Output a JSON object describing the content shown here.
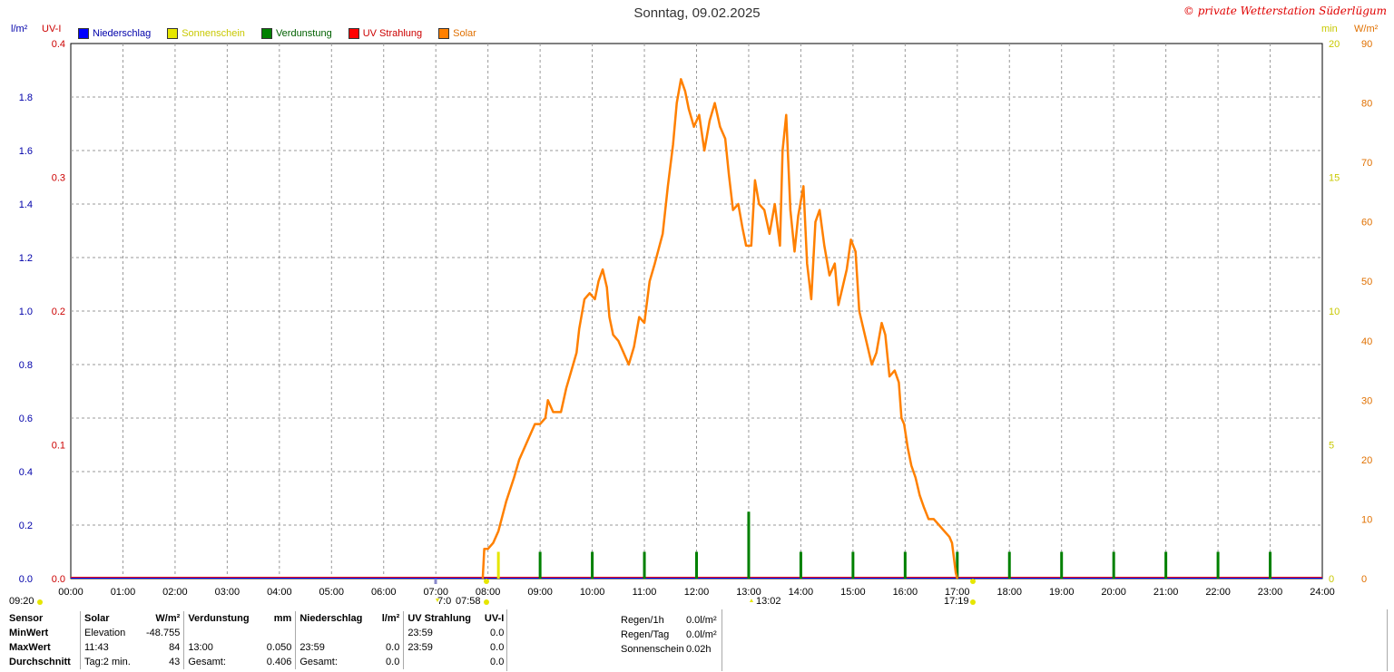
{
  "title": "Sonntag, 09.02.2025",
  "copyright": "© private Wetterstation Süderlügum",
  "legend": [
    {
      "label": "Niederschlag",
      "color": "#0000ff"
    },
    {
      "label": "Sonnenschein",
      "color": "#e6e600"
    },
    {
      "label": "Verdunstung",
      "color": "#008000"
    },
    {
      "label": "UV Strahlung",
      "color": "#ff0000"
    },
    {
      "label": "Solar",
      "color": "#ff8000"
    }
  ],
  "units": {
    "left1": "l/m²",
    "left2": "UV-I",
    "right1": "min",
    "right2": "W/m²"
  },
  "marks": {
    "bottom_left": "09:20",
    "sunrise_a": "7:0",
    "sunrise_b": "07:58",
    "max_uv": "13:02",
    "sunset": "17:19"
  },
  "stats": {
    "headers": [
      "Sensor",
      "Solar",
      "W/m²",
      "Verdunstung",
      "mm",
      "Niederschlag",
      "l/m²",
      "UV Strahlung",
      "UV-I"
    ],
    "rows": [
      {
        "label": "MinWert",
        "c1": "Elevation",
        "c2": "-48.755",
        "c3": "",
        "c4": "",
        "c5": "",
        "c6": "",
        "c7": "23:59",
        "c8": "0.0"
      },
      {
        "label": "MaxWert",
        "c1": "11:43",
        "c2": "84",
        "c3": "13:00",
        "c4": "0.050",
        "c5": "23:59",
        "c6": "0.0",
        "c7": "23:59",
        "c8": "0.0"
      },
      {
        "label": "Durchschnitt",
        "c1": "Tag:2 min.",
        "c2": "43",
        "c3": "Gesamt:",
        "c4": "0.406",
        "c5": "Gesamt:",
        "c6": "0.0",
        "c7": "",
        "c8": "0.0"
      }
    ]
  },
  "extra": [
    {
      "k": "Regen/1h",
      "v": "0.0l/m²"
    },
    {
      "k": "Regen/Tag",
      "v": "0.0l/m²"
    },
    {
      "k": "Sonnenschein",
      "v": "0.02h"
    }
  ],
  "chart_data": {
    "type": "line",
    "x_unit": "hour of day",
    "xlim": [
      0,
      24
    ],
    "x_ticks": [
      "00:00",
      "01:00",
      "02:00",
      "03:00",
      "04:00",
      "05:00",
      "06:00",
      "07:00",
      "08:00",
      "09:00",
      "10:00",
      "11:00",
      "12:00",
      "13:00",
      "14:00",
      "15:00",
      "16:00",
      "17:00",
      "18:00",
      "19:00",
      "20:00",
      "21:00",
      "22:00",
      "23:00",
      "24:00"
    ],
    "axes": {
      "niederschlag": {
        "range": [
          0,
          2.0
        ],
        "ticks": [
          "0.0",
          "0.2",
          "0.4",
          "0.6",
          "0.8",
          "1.0",
          "1.2",
          "1.4",
          "1.6",
          "1.8"
        ]
      },
      "uv": {
        "range": [
          0,
          0.4
        ],
        "ticks": [
          "0.0",
          "0.1",
          "0.2",
          "0.3",
          "0.4"
        ]
      },
      "sonnenschein": {
        "range": [
          0,
          20
        ],
        "ticks": [
          "0",
          "5",
          "10",
          "15",
          "20"
        ]
      },
      "solar": {
        "range": [
          0,
          90
        ],
        "ticks": [
          "0",
          "10",
          "20",
          "30",
          "40",
          "50",
          "60",
          "70",
          "80",
          "90"
        ]
      }
    },
    "series": [
      {
        "name": "Solar",
        "color": "#ff8000",
        "points": [
          [
            7.9,
            0
          ],
          [
            7.93,
            5
          ],
          [
            8.0,
            5
          ],
          [
            8.1,
            6
          ],
          [
            8.2,
            8
          ],
          [
            8.35,
            13
          ],
          [
            8.5,
            17
          ],
          [
            8.6,
            20
          ],
          [
            8.7,
            22
          ],
          [
            8.8,
            24
          ],
          [
            8.9,
            26
          ],
          [
            9.0,
            26
          ],
          [
            9.1,
            27
          ],
          [
            9.15,
            30
          ],
          [
            9.25,
            28
          ],
          [
            9.4,
            28
          ],
          [
            9.5,
            32
          ],
          [
            9.6,
            35
          ],
          [
            9.7,
            38
          ],
          [
            9.75,
            42
          ],
          [
            9.85,
            47
          ],
          [
            9.95,
            48
          ],
          [
            10.05,
            47
          ],
          [
            10.12,
            50
          ],
          [
            10.2,
            52
          ],
          [
            10.28,
            49
          ],
          [
            10.33,
            44
          ],
          [
            10.4,
            41
          ],
          [
            10.5,
            40
          ],
          [
            10.6,
            38
          ],
          [
            10.7,
            36
          ],
          [
            10.8,
            39
          ],
          [
            10.9,
            44
          ],
          [
            11.0,
            43
          ],
          [
            11.1,
            50
          ],
          [
            11.2,
            53
          ],
          [
            11.35,
            58
          ],
          [
            11.45,
            66
          ],
          [
            11.55,
            73
          ],
          [
            11.62,
            80
          ],
          [
            11.7,
            84
          ],
          [
            11.78,
            82
          ],
          [
            11.85,
            79
          ],
          [
            11.95,
            76
          ],
          [
            12.05,
            78
          ],
          [
            12.15,
            72
          ],
          [
            12.25,
            77
          ],
          [
            12.35,
            80
          ],
          [
            12.45,
            76
          ],
          [
            12.55,
            74
          ],
          [
            12.62,
            68
          ],
          [
            12.7,
            62
          ],
          [
            12.8,
            63
          ],
          [
            12.88,
            59
          ],
          [
            12.95,
            56
          ],
          [
            13.05,
            56
          ],
          [
            13.12,
            67
          ],
          [
            13.2,
            63
          ],
          [
            13.3,
            62
          ],
          [
            13.4,
            58
          ],
          [
            13.5,
            63
          ],
          [
            13.6,
            56
          ],
          [
            13.65,
            72
          ],
          [
            13.72,
            78
          ],
          [
            13.8,
            62
          ],
          [
            13.88,
            55
          ],
          [
            13.95,
            61
          ],
          [
            14.05,
            66
          ],
          [
            14.12,
            53
          ],
          [
            14.2,
            47
          ],
          [
            14.28,
            60
          ],
          [
            14.36,
            62
          ],
          [
            14.45,
            56
          ],
          [
            14.55,
            51
          ],
          [
            14.65,
            53
          ],
          [
            14.72,
            46
          ],
          [
            14.8,
            49
          ],
          [
            14.88,
            52
          ],
          [
            14.96,
            57
          ],
          [
            15.05,
            55
          ],
          [
            15.12,
            45
          ],
          [
            15.2,
            42
          ],
          [
            15.28,
            39
          ],
          [
            15.36,
            36
          ],
          [
            15.45,
            38
          ],
          [
            15.55,
            43
          ],
          [
            15.62,
            41
          ],
          [
            15.7,
            34
          ],
          [
            15.8,
            35
          ],
          [
            15.88,
            33
          ],
          [
            15.93,
            27
          ],
          [
            15.98,
            26
          ],
          [
            16.05,
            22
          ],
          [
            16.12,
            19
          ],
          [
            16.2,
            17
          ],
          [
            16.28,
            14
          ],
          [
            16.36,
            12
          ],
          [
            16.45,
            10
          ],
          [
            16.55,
            10
          ],
          [
            16.65,
            9
          ],
          [
            16.75,
            8
          ],
          [
            16.85,
            7
          ],
          [
            16.9,
            6
          ],
          [
            16.97,
            1
          ],
          [
            17.0,
            0
          ]
        ]
      },
      {
        "name": "Sonnenschein",
        "color": "#e6e600",
        "bars": [
          [
            8.2,
            1.0
          ]
        ]
      },
      {
        "name": "Verdunstung",
        "color": "#008000",
        "bars": [
          [
            9.0,
            0.02
          ],
          [
            10.0,
            0.02
          ],
          [
            11.0,
            0.02
          ],
          [
            12.0,
            0.02
          ],
          [
            13.0,
            0.05
          ],
          [
            14.0,
            0.02
          ],
          [
            15.0,
            0.02
          ],
          [
            16.0,
            0.02
          ],
          [
            17.0,
            0.02
          ],
          [
            18.0,
            0.02
          ],
          [
            19.0,
            0.02
          ],
          [
            20.0,
            0.02
          ],
          [
            21.0,
            0.02
          ],
          [
            22.0,
            0.02
          ],
          [
            23.0,
            0.02
          ]
        ]
      },
      {
        "name": "Niederschlag",
        "color": "#0000ff",
        "constant": 0.0
      },
      {
        "name": "UV Strahlung",
        "color": "#ff0000",
        "constant": 0.0
      }
    ]
  }
}
